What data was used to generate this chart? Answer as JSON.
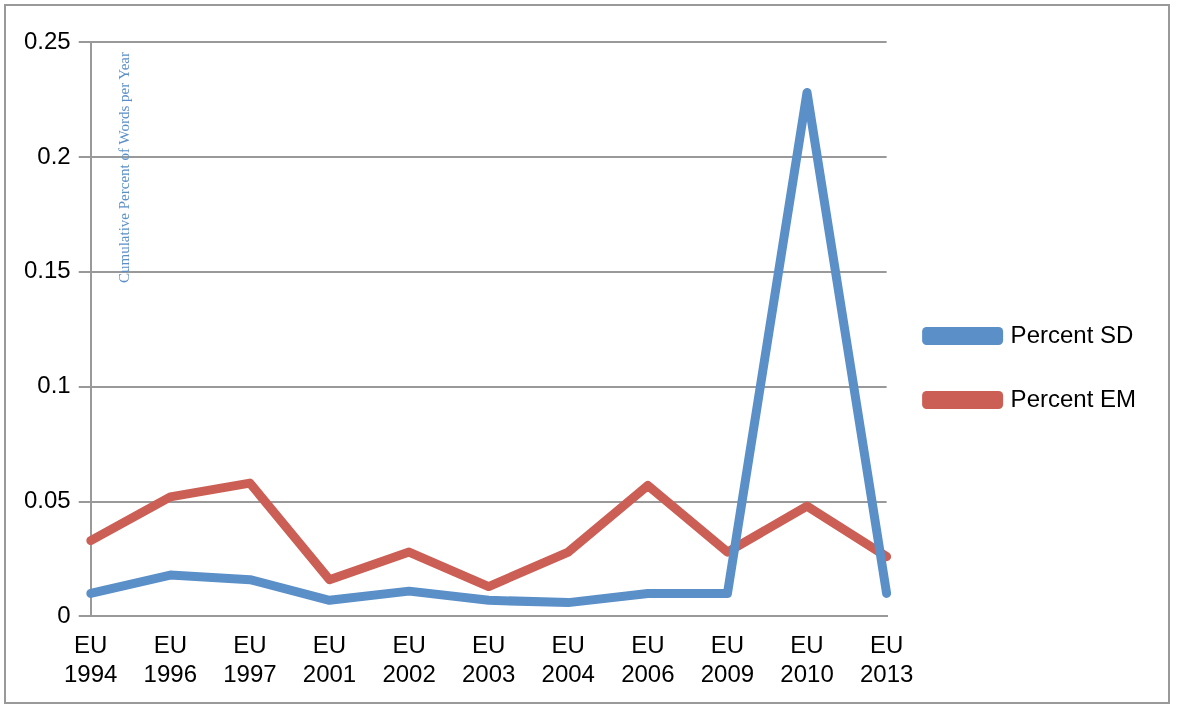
{
  "chart_data": {
    "type": "line",
    "ylabel": "Cumulative Percent of Words per Year",
    "categories": [
      "EU 1994",
      "EU 1996",
      "EU 1997",
      "EU 2001",
      "EU 2002",
      "EU 2003",
      "EU 2004",
      "EU 2006",
      "EU 2009",
      "EU 2010",
      "EU 2013"
    ],
    "series": [
      {
        "name": "Percent SD",
        "color": "#5b8fc8",
        "values": [
          0.01,
          0.018,
          0.016,
          0.007,
          0.011,
          0.007,
          0.006,
          0.01,
          0.01,
          0.228,
          0.01
        ]
      },
      {
        "name": "Percent EM",
        "color": "#cc5f55",
        "values": [
          0.033,
          0.052,
          0.058,
          0.016,
          0.028,
          0.013,
          0.028,
          0.057,
          0.028,
          0.048,
          0.026
        ]
      }
    ],
    "ylim": [
      0,
      0.25
    ],
    "yticks": [
      0,
      0.05,
      0.1,
      0.15,
      0.2,
      0.25
    ],
    "grid": "y",
    "legend": "right",
    "marker": "none",
    "line_style": "solid"
  }
}
